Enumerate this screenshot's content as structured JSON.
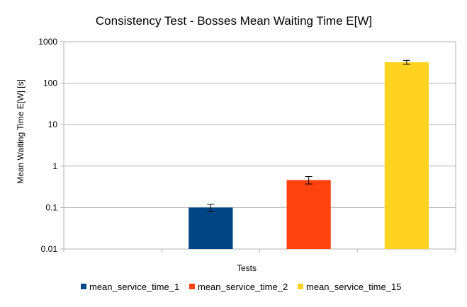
{
  "chart_data": {
    "type": "bar",
    "title": "Consistency Test - Bosses Mean Waiting Time E[W]",
    "xlabel": "Tests",
    "ylabel": "Mean Waiting Time E[W] [s]",
    "yscale": "log",
    "ylim": [
      0.01,
      1000
    ],
    "yticks": [
      "0.01",
      "0.1",
      "1",
      "10",
      "100",
      "1000"
    ],
    "grid": true,
    "legend": "bottom",
    "categories": [
      "",
      "",
      "",
      ""
    ],
    "series": [
      {
        "name": "mean_service_time_1",
        "color": "#004586",
        "values": [
          null,
          0.1,
          null,
          null
        ],
        "error": [
          [
            null,
            0.08,
            null,
            null
          ],
          [
            null,
            0.12,
            null,
            null
          ]
        ]
      },
      {
        "name": "mean_service_time_2",
        "color": "#ff420e",
        "values": [
          null,
          null,
          0.46,
          null
        ],
        "error": [
          [
            null,
            null,
            0.37,
            null
          ],
          [
            null,
            null,
            0.56,
            null
          ]
        ]
      },
      {
        "name": "mean_service_time_15",
        "color": "#ffd320",
        "values": [
          null,
          null,
          null,
          320
        ],
        "error": [
          [
            null,
            null,
            null,
            285
          ],
          [
            null,
            null,
            null,
            355
          ]
        ]
      }
    ]
  }
}
